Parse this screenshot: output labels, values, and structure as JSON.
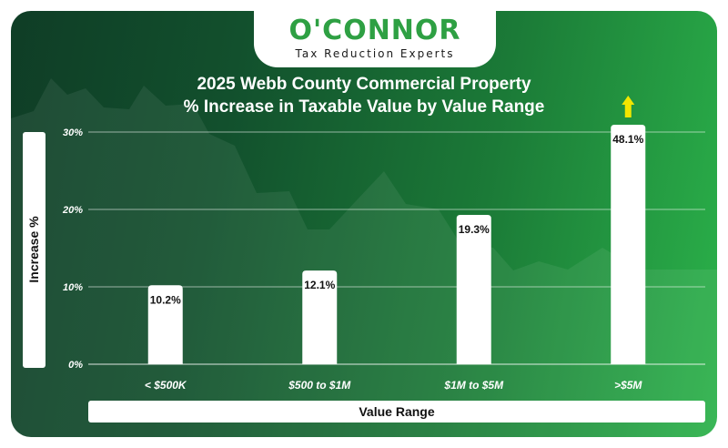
{
  "logo": {
    "name": "O'CONNOR",
    "tagline": "Tax Reduction Experts"
  },
  "chart_data": {
    "type": "bar",
    "title": "2025 Webb County Commercial Property",
    "subtitle": "% Increase in Taxable Value by Value Range",
    "xlabel": "Value Range",
    "ylabel": "Increase %",
    "categories": [
      "< $500K",
      "$500 to $1M",
      "$1M to $5M",
      ">$5M"
    ],
    "values": [
      10.2,
      12.1,
      19.3,
      48.1
    ],
    "data_labels": [
      "10.2%",
      "12.1%",
      "19.3%",
      "48.1%"
    ],
    "ylim": [
      0,
      30
    ],
    "yticks": [
      0,
      10,
      20,
      30
    ],
    "ytick_labels": [
      "0%",
      "10%",
      "20%",
      "30%"
    ],
    "grid": true,
    "bar_color": "#ffffff",
    "overflow_arrow_color": "#f2e600"
  }
}
